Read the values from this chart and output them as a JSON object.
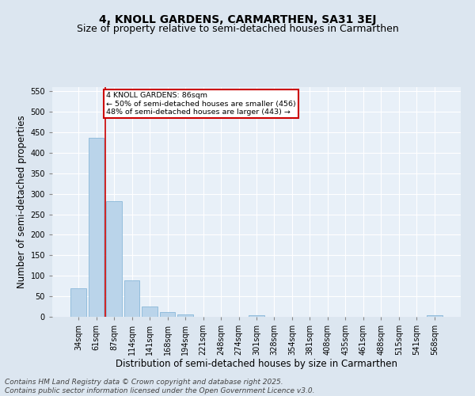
{
  "title": "4, KNOLL GARDENS, CARMARTHEN, SA31 3EJ",
  "subtitle": "Size of property relative to semi-detached houses in Carmarthen",
  "xlabel": "Distribution of semi-detached houses by size in Carmarthen",
  "ylabel": "Number of semi-detached properties",
  "bar_labels": [
    "34sqm",
    "61sqm",
    "87sqm",
    "114sqm",
    "141sqm",
    "168sqm",
    "194sqm",
    "221sqm",
    "248sqm",
    "274sqm",
    "301sqm",
    "328sqm",
    "354sqm",
    "381sqm",
    "408sqm",
    "435sqm",
    "461sqm",
    "488sqm",
    "515sqm",
    "541sqm",
    "568sqm"
  ],
  "bar_values": [
    70,
    437,
    281,
    89,
    25,
    12,
    5,
    0,
    0,
    0,
    4,
    0,
    0,
    0,
    0,
    0,
    0,
    0,
    0,
    0,
    3
  ],
  "bar_color": "#bad4ea",
  "bar_edge_color": "#7aafd4",
  "annotation_text_1": "4 KNOLL GARDENS: 86sqm",
  "annotation_text_2": "← 50% of semi-detached houses are smaller (456)",
  "annotation_text_3": "48% of semi-detached houses are larger (443) →",
  "annotation_box_color": "#ffffff",
  "annotation_box_edge_color": "#cc0000",
  "vline_color": "#cc0000",
  "ylim": [
    0,
    560
  ],
  "yticks": [
    0,
    50,
    100,
    150,
    200,
    250,
    300,
    350,
    400,
    450,
    500,
    550
  ],
  "bg_color": "#dce6f0",
  "plot_bg_color": "#e8f0f8",
  "footer_text": "Contains HM Land Registry data © Crown copyright and database right 2025.\nContains public sector information licensed under the Open Government Licence v3.0.",
  "title_fontsize": 10,
  "subtitle_fontsize": 9,
  "tick_fontsize": 7,
  "label_fontsize": 8.5,
  "footer_fontsize": 6.5
}
